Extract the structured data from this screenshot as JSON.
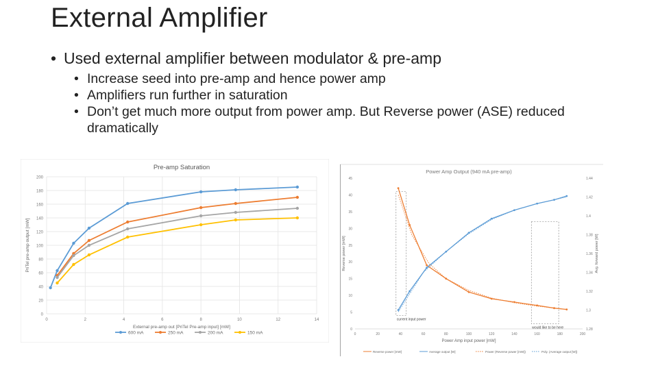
{
  "slide": {
    "title": "External Amplifier",
    "bullet": "Used external amplifier between modulator & pre-amp",
    "sub_bullets": [
      "Increase seed into pre-amp and hence power amp",
      "Amplifiers run further in saturation",
      "Don’t get much more output from power amp. But Reverse power (ASE) reduced dramatically"
    ]
  },
  "chart_data": [
    {
      "type": "line",
      "title": "Pre-amp Saturation",
      "xlabel": "External pre-amp out [PriTel Pre-amp input] [mW]",
      "ylabel": "PriTel pre-amp output [mW]",
      "xlim": [
        0,
        14
      ],
      "ylim": [
        0,
        200
      ],
      "xticks": [
        0,
        2,
        4,
        6,
        8,
        10,
        12,
        14
      ],
      "yticks": [
        0,
        20,
        40,
        60,
        80,
        100,
        120,
        140,
        160,
        180,
        200
      ],
      "grid": true,
      "legend": "bottom",
      "series": [
        {
          "name": "600 mA",
          "color": "#5b9bd5",
          "x": [
            0.2,
            0.55,
            1.4,
            2.2,
            4.2,
            8.0,
            9.8,
            13.0
          ],
          "y": [
            38,
            63,
            103,
            125,
            161,
            178,
            181,
            185
          ]
        },
        {
          "name": "250 mA",
          "color": "#ed7d31",
          "x": [
            0.55,
            1.4,
            2.2,
            4.2,
            8.0,
            9.8,
            13.0
          ],
          "y": [
            56,
            88,
            107,
            134,
            155,
            161,
            170
          ]
        },
        {
          "name": "200 mA",
          "color": "#a5a5a5",
          "x": [
            0.55,
            1.4,
            2.2,
            4.2,
            8.0,
            9.8,
            13.0
          ],
          "y": [
            53,
            85,
            100,
            124,
            143,
            148,
            154
          ]
        },
        {
          "name": "150 mA",
          "color": "#ffc000",
          "x": [
            0.55,
            1.4,
            2.2,
            4.2,
            8.0,
            9.8,
            13.0
          ],
          "y": [
            45,
            72,
            86,
            112,
            130,
            137,
            140
          ]
        }
      ]
    },
    {
      "type": "line",
      "title": "Power Amp Output (940 mA pre-amp)",
      "xlabel": "Power Amp input power [mW]",
      "ylabel": "Reverse power [mW]",
      "ylabel_right": "Avg. forward power [W]",
      "xlim": [
        0,
        200
      ],
      "ylim": [
        0,
        45
      ],
      "ylim_right": [
        1.28,
        1.44
      ],
      "xticks": [
        0,
        20,
        40,
        60,
        80,
        100,
        120,
        140,
        160,
        180,
        200
      ],
      "yticks": [
        0,
        5,
        10,
        15,
        20,
        25,
        30,
        35,
        40,
        45
      ],
      "yticks_right": [
        1.28,
        1.3,
        1.32,
        1.34,
        1.36,
        1.38,
        1.4,
        1.42,
        1.44
      ],
      "grid": false,
      "legend": "bottom",
      "annotations": [
        "current input power",
        "would like to be here"
      ],
      "series": [
        {
          "name": "Reverse power [mW]",
          "color": "#ed7d31",
          "axis": "left",
          "x": [
            38,
            48,
            63,
            80,
            100,
            120,
            140,
            160,
            175,
            186
          ],
          "y": [
            42,
            31,
            19,
            15,
            11,
            9,
            8,
            7,
            6.2,
            5.8
          ]
        },
        {
          "name": "Average output [W]",
          "color": "#5b9bd5",
          "axis": "right",
          "x": [
            38,
            48,
            63,
            80,
            100,
            120,
            140,
            160,
            175,
            186
          ],
          "y": [
            1.3,
            1.32,
            1.345,
            1.362,
            1.382,
            1.397,
            1.406,
            1.413,
            1.417,
            1.421
          ]
        },
        {
          "name": "Power (Reverse power [mW])",
          "color": "#ed7d31",
          "style": "dotted",
          "axis": "left",
          "x": [
            38,
            50,
            65,
            80,
            100,
            120,
            140,
            160,
            186
          ],
          "y": [
            40,
            28,
            19.5,
            15,
            11.5,
            9.2,
            7.8,
            6.8,
            5.8
          ]
        },
        {
          "name": "Poly. (Average output [W])",
          "color": "#5b9bd5",
          "style": "dotted",
          "axis": "right",
          "x": [
            38,
            60,
            80,
            100,
            120,
            140,
            160,
            186
          ],
          "y": [
            1.298,
            1.34,
            1.362,
            1.381,
            1.396,
            1.406,
            1.413,
            1.42
          ]
        }
      ]
    }
  ]
}
